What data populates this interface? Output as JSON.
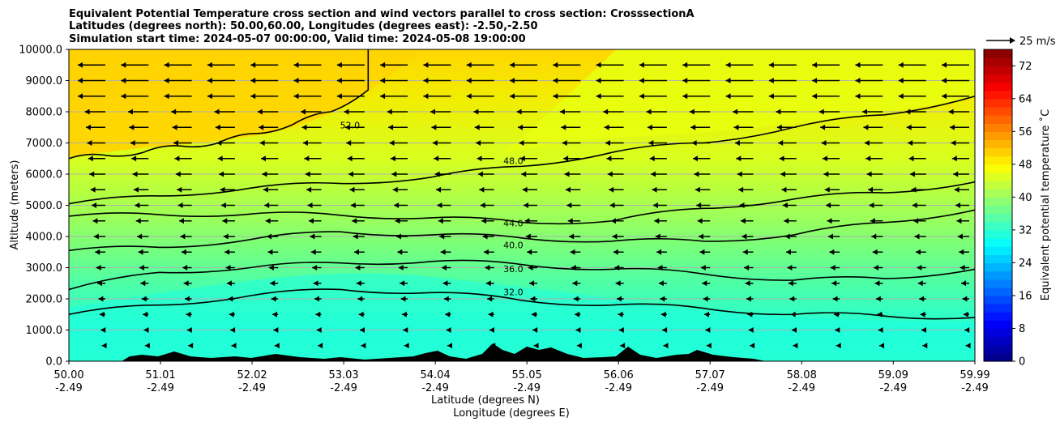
{
  "title_lines": [
    "Equivalent Potential Temperature cross section and wind vectors parallel to cross section: CrosssectionA",
    "Latitudes (degrees north): 50.00,60.00, Longitudes (degrees east): -2.50,-2.50",
    "Simulation start time: 2024-05-07 00:00:00, Valid time: 2024-05-08 19:00:00"
  ],
  "quiver_key": "25 m/s",
  "colors": {
    "terrain": "#000000",
    "contour": "#000000",
    "grid": "#b0b0b0"
  },
  "chart_data": {
    "type": "heatmap",
    "xlabel_lat": "Latitude (degrees N)",
    "xlabel_lon": "Longitude (degrees E)",
    "ylabel": "Altitude (meters)",
    "colorbar_label": "Equivalent potential temperature ˚C",
    "ylim": [
      0,
      10000
    ],
    "yticks": [
      "0.0",
      "1000.0",
      "2000.0",
      "3000.0",
      "4000.0",
      "5000.0",
      "6000.0",
      "7000.0",
      "8000.0",
      "9000.0",
      "10000.0"
    ],
    "xticks": [
      {
        "lat": "50.00",
        "lon": "-2.49"
      },
      {
        "lat": "51.01",
        "lon": "-2.49"
      },
      {
        "lat": "52.02",
        "lon": "-2.49"
      },
      {
        "lat": "53.03",
        "lon": "-2.49"
      },
      {
        "lat": "54.04",
        "lon": "-2.49"
      },
      {
        "lat": "55.05",
        "lon": "-2.49"
      },
      {
        "lat": "56.06",
        "lon": "-2.49"
      },
      {
        "lat": "57.07",
        "lon": "-2.49"
      },
      {
        "lat": "58.08",
        "lon": "-2.49"
      },
      {
        "lat": "59.09",
        "lon": "-2.49"
      },
      {
        "lat": "59.99",
        "lon": "-2.49"
      }
    ],
    "colorbar_ticks": [
      "0",
      "8",
      "16",
      "24",
      "32",
      "40",
      "48",
      "56",
      "64",
      "72"
    ],
    "colorbar_range": [
      0,
      76
    ],
    "grid": "horizontal",
    "contour_labels": [
      "52.0",
      "48.0",
      "44.0",
      "40.0",
      "36.0",
      "32.0"
    ],
    "contours": [
      {
        "level": "52.0",
        "alt": [
          6500,
          6600,
          6700,
          6900,
          7000,
          7300,
          7600,
          8000,
          8700
        ],
        "lat_end": 53.3
      },
      {
        "level": "48.0",
        "alt": [
          5050,
          5300,
          5550,
          5700,
          5900,
          6250,
          6700,
          7000,
          7500,
          7900,
          8500
        ]
      },
      {
        "level": "44.0",
        "alt": [
          4650,
          4700,
          4720,
          4680,
          4600,
          4450,
          4500,
          4900,
          5200,
          5400,
          5750
        ]
      },
      {
        "level": "40.0",
        "alt": [
          3550,
          3650,
          3900,
          4150,
          4050,
          3950,
          3850,
          3850,
          4050,
          4450,
          4850
        ]
      },
      {
        "level": "36.0",
        "alt": [
          2300,
          2850,
          3000,
          3150,
          3200,
          3100,
          2950,
          2800,
          2600,
          2650,
          2950
        ]
      },
      {
        "level": "32.0",
        "alt": [
          1500,
          1800,
          2100,
          2300,
          2200,
          1950,
          1800,
          1700,
          1500,
          1450,
          1400
        ]
      }
    ]
  }
}
